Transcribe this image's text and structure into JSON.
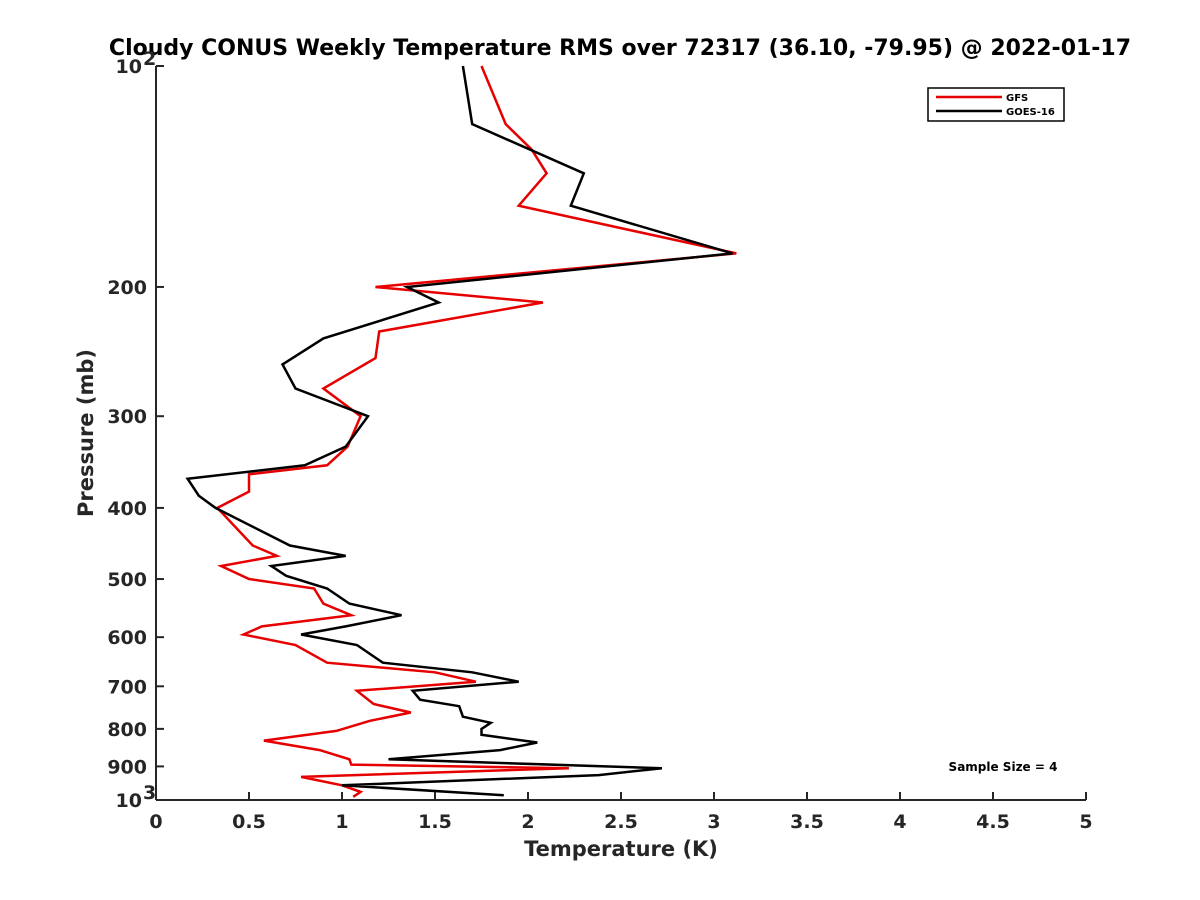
{
  "chart_data": {
    "type": "line",
    "title": "Cloudy CONUS Weekly Temperature RMS over 72317 (36.10, -79.95) @ 2022-01-17",
    "xlabel": "Temperature (K)",
    "ylabel": "Pressure (mb)",
    "xlim": [
      0,
      5
    ],
    "ylim": [
      100,
      1000
    ],
    "y_scale": "log",
    "y_reversed": true,
    "grid": false,
    "legend_position": "top-right",
    "xticks": [
      {
        "value": 0,
        "label": "0"
      },
      {
        "value": 0.5,
        "label": "0.5"
      },
      {
        "value": 1,
        "label": "1"
      },
      {
        "value": 1.5,
        "label": "1.5"
      },
      {
        "value": 2,
        "label": "2"
      },
      {
        "value": 2.5,
        "label": "2.5"
      },
      {
        "value": 3,
        "label": "3"
      },
      {
        "value": 3.5,
        "label": "3.5"
      },
      {
        "value": 4,
        "label": "4"
      },
      {
        "value": 4.5,
        "label": "4.5"
      },
      {
        "value": 5,
        "label": "5"
      }
    ],
    "yticks": [
      {
        "value": 100,
        "label": "10",
        "sup": "2"
      },
      {
        "value": 200,
        "label": "200",
        "sup": ""
      },
      {
        "value": 300,
        "label": "300",
        "sup": ""
      },
      {
        "value": 400,
        "label": "400",
        "sup": ""
      },
      {
        "value": 500,
        "label": "500",
        "sup": ""
      },
      {
        "value": 600,
        "label": "600",
        "sup": ""
      },
      {
        "value": 700,
        "label": "700",
        "sup": ""
      },
      {
        "value": 800,
        "label": "800",
        "sup": ""
      },
      {
        "value": 900,
        "label": "900",
        "sup": ""
      },
      {
        "value": 1000,
        "label": "10",
        "sup": "3"
      }
    ],
    "annotation": "Sample Size = 4",
    "series": [
      {
        "name": "GFS",
        "color": "#e60000",
        "points": [
          [
            1.75,
            100
          ],
          [
            1.88,
            120
          ],
          [
            2.02,
            130
          ],
          [
            2.1,
            140
          ],
          [
            1.95,
            155
          ],
          [
            3.12,
            180
          ],
          [
            1.18,
            200
          ],
          [
            2.08,
            210
          ],
          [
            1.2,
            230
          ],
          [
            1.18,
            250
          ],
          [
            0.9,
            275
          ],
          [
            1.1,
            300
          ],
          [
            1.03,
            330
          ],
          [
            0.92,
            350
          ],
          [
            0.5,
            360
          ],
          [
            0.5,
            380
          ],
          [
            0.33,
            400
          ],
          [
            0.52,
            450
          ],
          [
            0.65,
            465
          ],
          [
            0.35,
            480
          ],
          [
            0.5,
            500
          ],
          [
            0.85,
            515
          ],
          [
            0.9,
            540
          ],
          [
            1.05,
            560
          ],
          [
            0.57,
            580
          ],
          [
            0.47,
            595
          ],
          [
            0.75,
            615
          ],
          [
            0.92,
            650
          ],
          [
            1.5,
            670
          ],
          [
            1.72,
            690
          ],
          [
            1.08,
            710
          ],
          [
            1.17,
            740
          ],
          [
            1.37,
            760
          ],
          [
            1.15,
            780
          ],
          [
            0.97,
            805
          ],
          [
            0.58,
            830
          ],
          [
            0.88,
            855
          ],
          [
            1.04,
            880
          ],
          [
            1.05,
            895
          ],
          [
            2.22,
            905
          ],
          [
            0.78,
            930
          ],
          [
            1.0,
            955
          ],
          [
            1.1,
            975
          ],
          [
            1.06,
            990
          ]
        ]
      },
      {
        "name": "GOES-16",
        "color": "#000000",
        "points": [
          [
            1.65,
            100
          ],
          [
            1.7,
            120
          ],
          [
            2.3,
            140
          ],
          [
            2.23,
            155
          ],
          [
            3.1,
            180
          ],
          [
            1.35,
            200
          ],
          [
            1.52,
            210
          ],
          [
            0.9,
            235
          ],
          [
            0.68,
            255
          ],
          [
            0.75,
            275
          ],
          [
            1.14,
            300
          ],
          [
            1.02,
            330
          ],
          [
            0.8,
            350
          ],
          [
            0.17,
            365
          ],
          [
            0.23,
            385
          ],
          [
            0.32,
            400
          ],
          [
            0.72,
            450
          ],
          [
            1.02,
            465
          ],
          [
            0.62,
            480
          ],
          [
            0.7,
            495
          ],
          [
            0.92,
            515
          ],
          [
            1.04,
            540
          ],
          [
            1.32,
            560
          ],
          [
            1.02,
            580
          ],
          [
            0.78,
            595
          ],
          [
            1.08,
            615
          ],
          [
            1.22,
            650
          ],
          [
            1.7,
            670
          ],
          [
            1.95,
            690
          ],
          [
            1.38,
            710
          ],
          [
            1.42,
            730
          ],
          [
            1.63,
            745
          ],
          [
            1.65,
            770
          ],
          [
            1.8,
            785
          ],
          [
            1.75,
            800
          ],
          [
            1.75,
            815
          ],
          [
            2.05,
            835
          ],
          [
            1.85,
            855
          ],
          [
            1.25,
            880
          ],
          [
            2.72,
            905
          ],
          [
            2.38,
            925
          ],
          [
            1.0,
            955
          ],
          [
            1.87,
            985
          ]
        ]
      }
    ]
  }
}
